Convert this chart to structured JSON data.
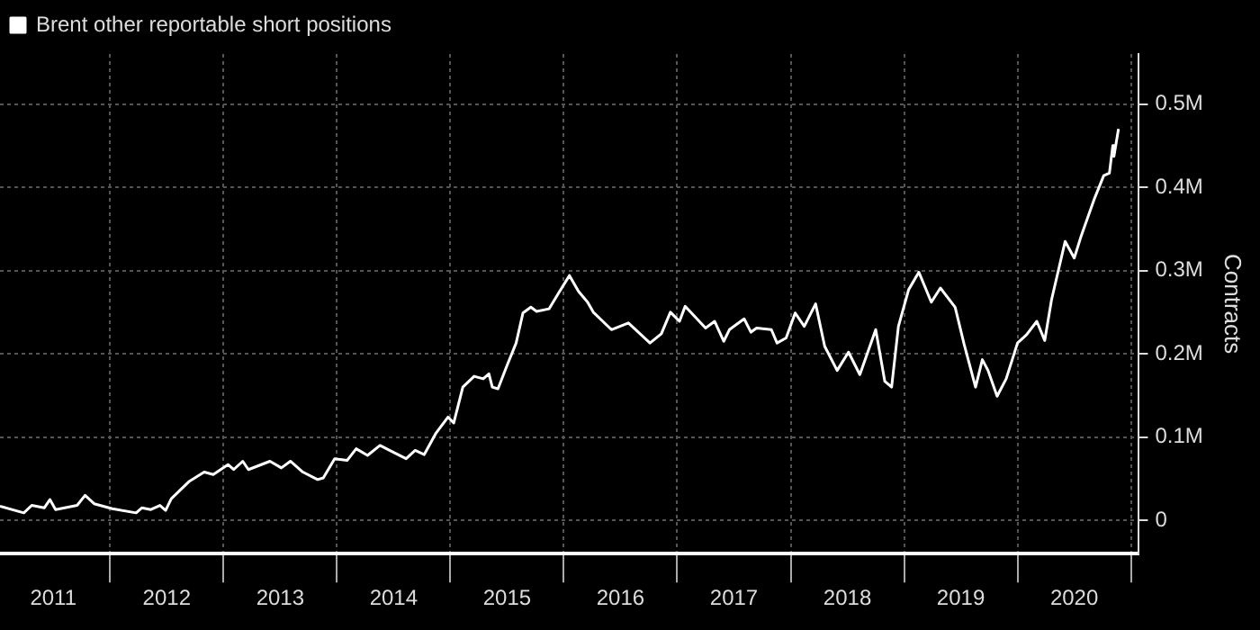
{
  "chart_data": {
    "type": "line",
    "ylabel": "Contracts",
    "x": [
      2011.03,
      2011.24,
      2011.31,
      2011.42,
      2011.47,
      2011.52,
      2011.71,
      2011.78,
      2011.86,
      2012.02,
      2012.23,
      2012.28,
      2012.36,
      2012.44,
      2012.49,
      2012.54,
      2012.7,
      2012.83,
      2012.91,
      2013.04,
      2013.09,
      2013.17,
      2013.22,
      2013.41,
      2013.51,
      2013.59,
      2013.7,
      2013.83,
      2013.88,
      2013.98,
      2014.09,
      2014.17,
      2014.27,
      2014.38,
      2014.48,
      2014.61,
      2014.69,
      2014.77,
      2014.87,
      2014.98,
      2015.03,
      2015.11,
      2015.21,
      2015.29,
      2015.34,
      2015.37,
      2015.42,
      2015.5,
      2015.58,
      2015.64,
      2015.71,
      2015.76,
      2015.87,
      2015.95,
      2016.05,
      2016.13,
      2016.21,
      2016.26,
      2016.42,
      2016.57,
      2016.76,
      2016.86,
      2016.94,
      2017.02,
      2017.07,
      2017.25,
      2017.33,
      2017.41,
      2017.46,
      2017.59,
      2017.65,
      2017.7,
      2017.83,
      2017.88,
      2017.96,
      2018.04,
      2018.12,
      2018.22,
      2018.3,
      2018.41,
      2018.51,
      2018.61,
      2018.75,
      2018.83,
      2018.89,
      2018.95,
      2019.04,
      2019.13,
      2019.24,
      2019.32,
      2019.45,
      2019.53,
      2019.63,
      2019.69,
      2019.74,
      2019.82,
      2019.9,
      2020.0,
      2020.08,
      2020.17,
      2020.24,
      2020.3,
      2020.42,
      2020.5,
      2020.56,
      2020.63,
      2020.68,
      2020.76,
      2020.81,
      2020.84,
      2020.85,
      2020.89
    ],
    "series": [
      {
        "name": "Brent other reportable short positions",
        "color": "#ffffff",
        "values": [
          0.017,
          0.009,
          0.018,
          0.015,
          0.025,
          0.013,
          0.018,
          0.03,
          0.02,
          0.014,
          0.009,
          0.015,
          0.013,
          0.018,
          0.012,
          0.026,
          0.047,
          0.058,
          0.055,
          0.067,
          0.061,
          0.071,
          0.061,
          0.071,
          0.063,
          0.071,
          0.058,
          0.049,
          0.051,
          0.074,
          0.072,
          0.086,
          0.078,
          0.09,
          0.083,
          0.074,
          0.084,
          0.079,
          0.104,
          0.124,
          0.117,
          0.16,
          0.173,
          0.17,
          0.176,
          0.16,
          0.158,
          0.186,
          0.213,
          0.249,
          0.256,
          0.251,
          0.254,
          0.272,
          0.294,
          0.275,
          0.262,
          0.25,
          0.229,
          0.237,
          0.213,
          0.224,
          0.25,
          0.239,
          0.257,
          0.231,
          0.239,
          0.215,
          0.229,
          0.242,
          0.226,
          0.231,
          0.229,
          0.213,
          0.219,
          0.249,
          0.233,
          0.26,
          0.209,
          0.18,
          0.202,
          0.175,
          0.229,
          0.167,
          0.16,
          0.233,
          0.277,
          0.298,
          0.262,
          0.279,
          0.256,
          0.211,
          0.16,
          0.193,
          0.18,
          0.149,
          0.17,
          0.213,
          0.223,
          0.239,
          0.216,
          0.265,
          0.335,
          0.315,
          0.341,
          0.368,
          0.387,
          0.414,
          0.417,
          0.45,
          0.437,
          0.47
        ]
      }
    ],
    "xlim": [
      2011.03,
      2021.07
    ],
    "xticks": [
      {
        "value": 2011.5,
        "label": "2011"
      },
      {
        "value": 2012,
        "label": null
      },
      {
        "value": 2012.5,
        "label": "2012"
      },
      {
        "value": 2013,
        "label": null
      },
      {
        "value": 2013.5,
        "label": "2013"
      },
      {
        "value": 2014,
        "label": null
      },
      {
        "value": 2014.5,
        "label": "2014"
      },
      {
        "value": 2015,
        "label": null
      },
      {
        "value": 2015.5,
        "label": "2015"
      },
      {
        "value": 2016,
        "label": null
      },
      {
        "value": 2016.5,
        "label": "2016"
      },
      {
        "value": 2017,
        "label": null
      },
      {
        "value": 2017.5,
        "label": "2017"
      },
      {
        "value": 2018,
        "label": null
      },
      {
        "value": 2018.5,
        "label": "2018"
      },
      {
        "value": 2019,
        "label": null
      },
      {
        "value": 2019.5,
        "label": "2019"
      },
      {
        "value": 2020,
        "label": null
      },
      {
        "value": 2020.5,
        "label": "2020"
      },
      {
        "value": 2021,
        "label": null
      }
    ],
    "ylim": [
      -0.04,
      0.56
    ],
    "yticks": [
      {
        "value": 0,
        "label": "0"
      },
      {
        "value": 0.1,
        "label": "0.1M"
      },
      {
        "value": 0.2,
        "label": "0.2M"
      },
      {
        "value": 0.3,
        "label": "0.3M"
      },
      {
        "value": 0.4,
        "label": "0.4M"
      },
      {
        "value": 0.5,
        "label": "0.5M"
      }
    ],
    "grid": true,
    "legend": "top left"
  }
}
